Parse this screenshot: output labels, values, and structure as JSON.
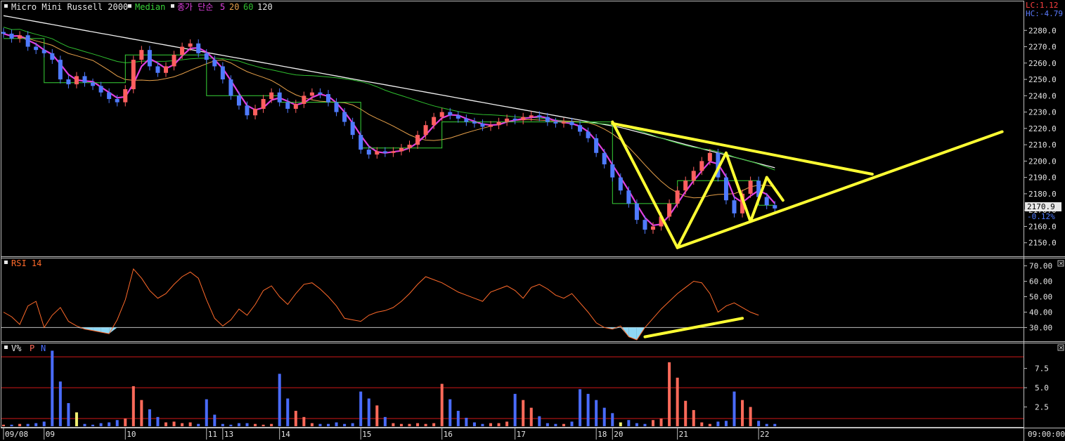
{
  "colors": {
    "background": "#000000",
    "frame": "#bdbdbd",
    "up_candle": "#ff5f5f",
    "down_candle": "#4f7bff",
    "ma5": "#e040e0",
    "ma20": "#e6a04a",
    "ma60": "#2fbf2f",
    "ma120": "#f0f0f0",
    "median": "#38d438",
    "rsi": "#ff6a2a",
    "rsi_fill": "#8fd8f5",
    "trend": "#ffff33",
    "vol_p": "#ff6a5a",
    "vol_n": "#4a6cff",
    "vol_highlight": "#f0f070",
    "hline": "#d01818"
  },
  "price_panel": {
    "instrument": "Micro Mini Russell 2000",
    "median_label": "Median",
    "ma_label": "종가 단순",
    "ma_periods": [
      "5",
      "20",
      "60",
      "120"
    ],
    "lc_label": "LC:1.12",
    "hc_label": "HC:-4.79",
    "last_price": "2170.9",
    "change_pct": "-0.12%"
  },
  "rsi_panel": {
    "title": "RSI 14"
  },
  "volume_panel": {
    "title": "V%",
    "p_label": "P",
    "n_label": "N"
  },
  "time_axis_end": "09:00:00",
  "chart_data": [
    {
      "type": "candlestick",
      "title": "Micro Mini Russell 2000",
      "x_tick_labels": [
        "09/08",
        "09",
        "10",
        "11",
        "13",
        "14",
        "15",
        "16",
        "17",
        "18",
        "20",
        "21",
        "22"
      ],
      "x_tick_positions": [
        0,
        5,
        15,
        25,
        27,
        34,
        44,
        54,
        63,
        73,
        75,
        83,
        93
      ],
      "y_ticks": [
        "2280.0",
        "2270.0",
        "2260.0",
        "2250.0",
        "2240.0",
        "2230.0",
        "2220.0",
        "2210.0",
        "2200.0",
        "2190.0",
        "2180.0",
        "2170.0",
        "2160.0",
        "2150.0"
      ],
      "ylim": [
        2143,
        2290
      ],
      "close": [
        2278,
        2275,
        2277,
        2270,
        2268,
        2266,
        2262,
        2250,
        2247,
        2252,
        2248,
        2246,
        2242,
        2238,
        2236,
        2244,
        2262,
        2268,
        2258,
        2254,
        2258,
        2265,
        2270,
        2272,
        2266,
        2262,
        2258,
        2250,
        2240,
        2234,
        2228,
        2232,
        2238,
        2242,
        2236,
        2232,
        2235,
        2240,
        2242,
        2241,
        2236,
        2230,
        2224,
        2216,
        2207,
        2204,
        2206,
        2205,
        2206,
        2208,
        2210,
        2216,
        2222,
        2227,
        2230,
        2228,
        2226,
        2224,
        2223,
        2221,
        2222,
        2224,
        2226,
        2225,
        2227,
        2228,
        2227,
        2224,
        2223,
        2224,
        2222,
        2218,
        2214,
        2205,
        2198,
        2190,
        2182,
        2174,
        2164,
        2158,
        2160,
        2166,
        2174,
        2182,
        2188,
        2194,
        2200,
        2205,
        2190,
        2176,
        2168,
        2180,
        2188,
        2178,
        2173,
        2171
      ],
      "annotations": {
        "trend_lines_price": [
          [
            [
              75,
              2224
            ],
            [
              83,
              2147
            ]
          ],
          [
            [
              83,
              2147
            ],
            [
              89,
              2205
            ]
          ],
          [
            [
              89,
              2205
            ],
            [
              92,
              2163
            ]
          ],
          [
            [
              92,
              2163
            ],
            [
              94,
              2190
            ]
          ],
          [
            [
              94,
              2190
            ],
            [
              96,
              2176
            ]
          ],
          [
            [
              75,
              2223
            ],
            [
              107,
              2192
            ]
          ],
          [
            [
              83,
              2147
            ],
            [
              123,
              2218
            ]
          ]
        ]
      }
    },
    {
      "type": "line",
      "title": "RSI 14",
      "y_ticks": [
        "70.00",
        "60.00",
        "50.00",
        "40.00",
        "30.00"
      ],
      "ylim": [
        22,
        73
      ],
      "oversold_level": 30,
      "values": [
        40,
        37,
        32,
        44,
        47,
        30,
        38,
        43,
        34,
        31,
        29,
        28,
        27,
        26,
        35,
        48,
        68,
        62,
        54,
        49,
        52,
        58,
        63,
        66,
        62,
        48,
        36,
        31,
        35,
        42,
        38,
        45,
        54,
        57,
        50,
        45,
        52,
        58,
        59,
        55,
        50,
        44,
        36,
        35,
        34,
        38,
        40,
        41,
        43,
        47,
        52,
        58,
        63,
        61,
        59,
        56,
        53,
        51,
        49,
        47,
        53,
        55,
        57,
        54,
        49,
        56,
        58,
        55,
        51,
        49,
        52,
        46,
        40,
        33,
        30,
        29,
        31,
        24,
        22,
        30,
        36,
        42,
        47,
        52,
        56,
        60,
        59,
        52,
        40,
        44,
        46,
        43,
        40,
        38
      ],
      "annotations": {
        "trend_line": [
          [
            79,
            24
          ],
          [
            91,
            36
          ]
        ]
      }
    },
    {
      "type": "bar",
      "title": "V%",
      "series_names": [
        "P",
        "N"
      ],
      "y_ticks": [
        "7.5",
        "5.0",
        "2.5"
      ],
      "ylim": [
        0,
        10.2
      ],
      "reference_levels": [
        9.0,
        5.0,
        1.0
      ],
      "values": [
        0.2,
        0.2,
        0.3,
        0.3,
        0.4,
        0.6,
        9.8,
        5.8,
        3.0,
        1.8,
        0.3,
        0.2,
        0.4,
        0.5,
        0.8,
        1.0,
        5.2,
        3.4,
        2.2,
        1.2,
        0.5,
        0.6,
        0.4,
        0.5,
        0.3,
        3.5,
        1.5,
        0.3,
        0.2,
        0.4,
        0.4,
        0.3,
        0.2,
        0.3,
        6.8,
        3.6,
        2.0,
        1.2,
        0.4,
        0.3,
        0.3,
        0.5,
        0.3,
        0.4,
        4.5,
        3.6,
        2.7,
        1.2,
        0.4,
        0.3,
        0.3,
        0.4,
        0.3,
        0.4,
        5.5,
        3.5,
        2.0,
        1.1,
        0.5,
        0.3,
        0.4,
        0.4,
        0.6,
        4.2,
        3.4,
        2.4,
        1.3,
        0.4,
        0.3,
        0.3,
        0.6,
        4.8,
        4.2,
        3.4,
        2.4,
        1.7,
        0.5,
        0.8,
        0.4,
        0.3,
        0.8,
        1.0,
        8.3,
        6.3,
        3.3,
        2.1,
        0.5,
        0.3,
        0.6,
        0.7,
        4.5,
        3.4,
        2.5,
        0.7,
        0.3,
        0.3
      ],
      "highlight_bars": [
        9,
        76
      ]
    }
  ]
}
